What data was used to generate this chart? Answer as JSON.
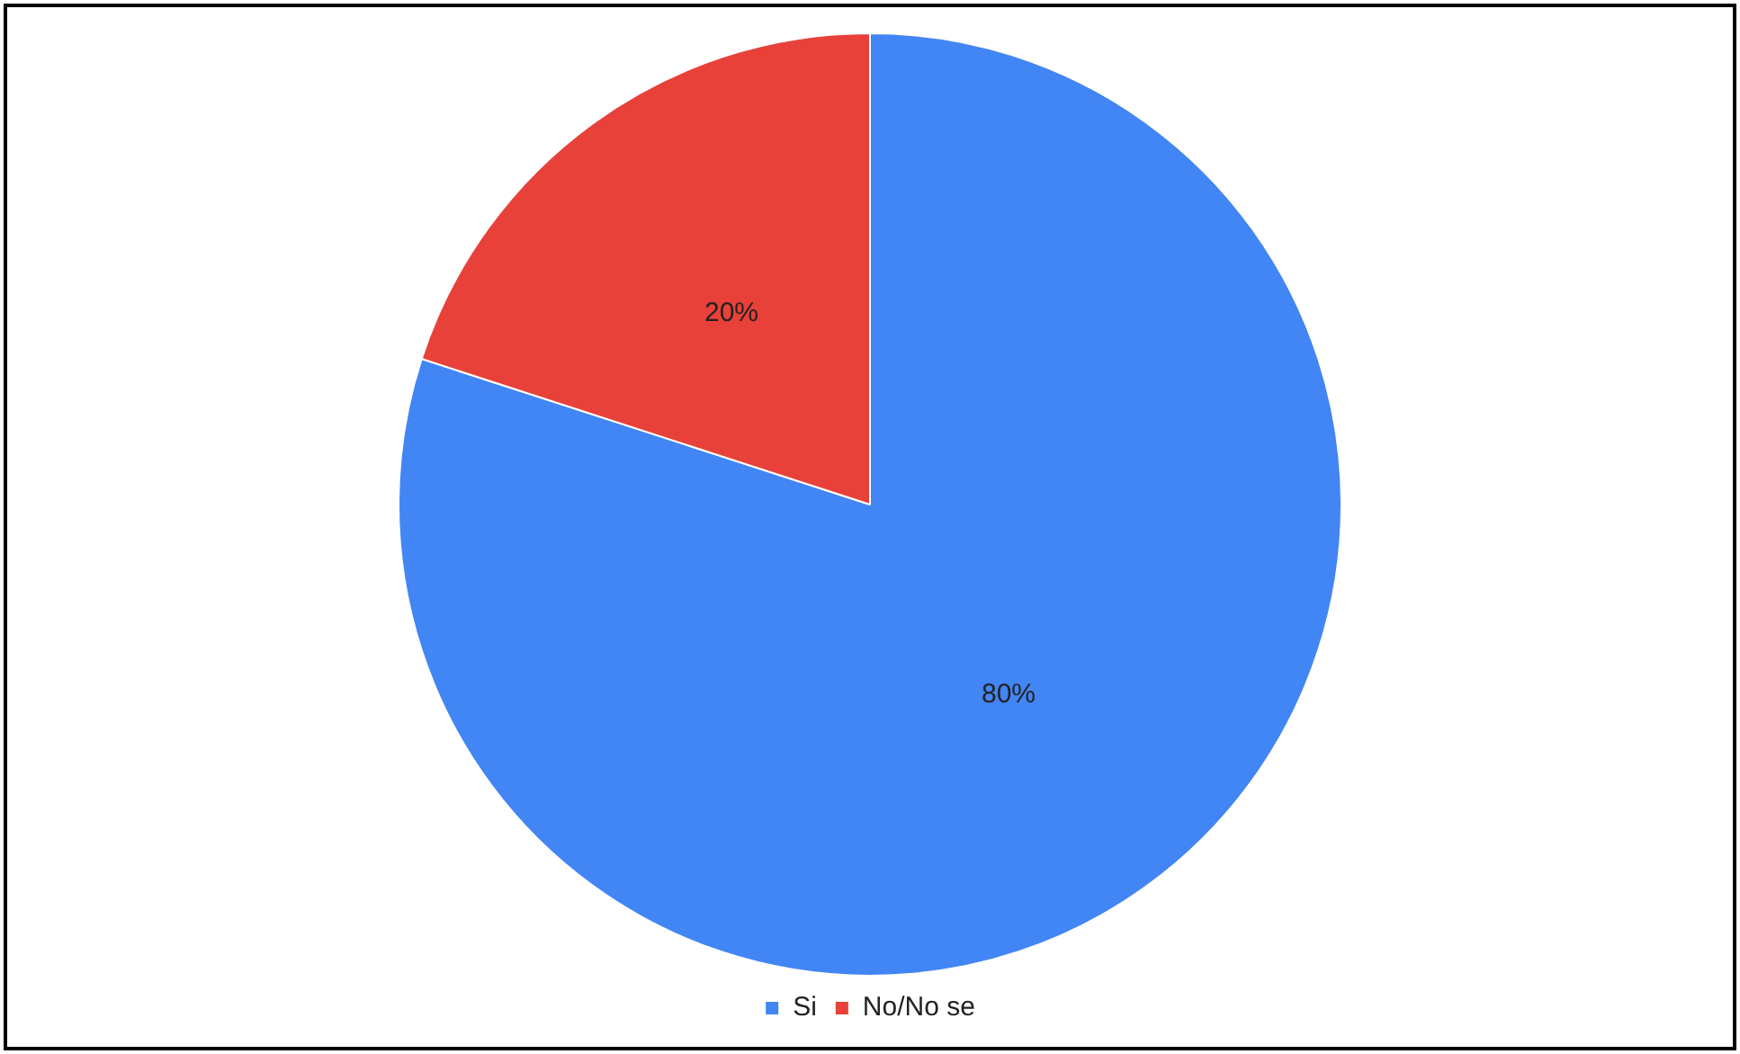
{
  "chart_data": {
    "type": "pie",
    "categories": [
      "Si",
      "No/No se"
    ],
    "values": [
      80,
      20
    ],
    "colors": [
      "#4285f4",
      "#e8413a"
    ],
    "value_labels": [
      "80%",
      "20%"
    ],
    "legend": "bottom"
  }
}
